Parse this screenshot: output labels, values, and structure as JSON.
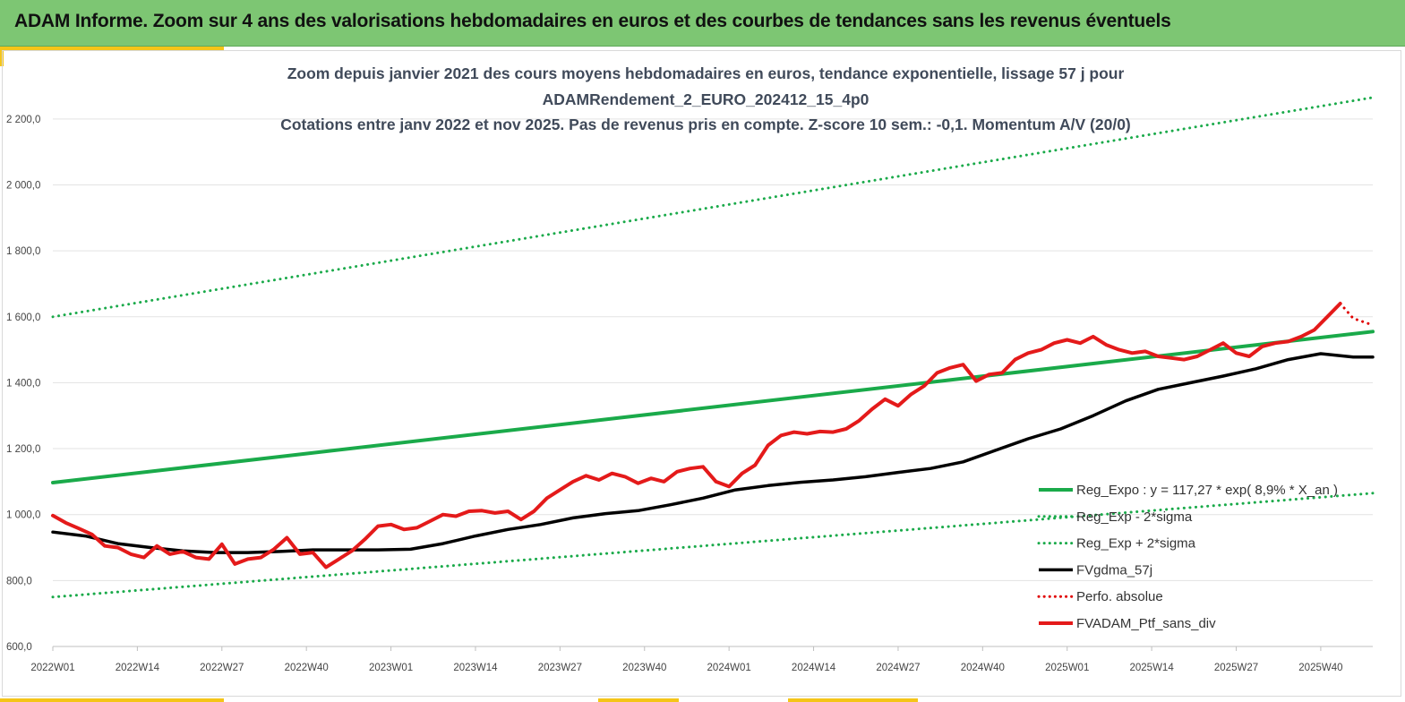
{
  "header": {
    "title": "ADAM Informe. Zoom sur 4 ans des valorisations hebdomadaires en euros et des courbes de tendances sans les revenus éventuels"
  },
  "colors": {
    "header_bg": "#7dc673",
    "accent": "#f5c518",
    "trend": "#1aaa4a",
    "trend_band": "#1aaa4a",
    "smoothed": "#000000",
    "perf_abs": "#e00000",
    "portfolio": "#e41a1a"
  },
  "chart_data": {
    "type": "line",
    "title_lines": [
      "Zoom depuis janvier 2021 des cours moyens hebdomadaires  en euros, tendance exponentielle, lissage 57 j pour",
      "ADAMRendement_2_EURO_202412_15_4p0",
      "Cotations  entre janv 2022 et nov 2025. Pas de revenus pris en compte. Z-score 10 sem.: -0,1. Momentum A/V (20/0)"
    ],
    "x_tick_labels": [
      "2022W01",
      "2022W14",
      "2022W27",
      "2022W40",
      "2023W01",
      "2023W14",
      "2023W27",
      "2023W40",
      "2024W01",
      "2024W14",
      "2024W27",
      "2024W40",
      "2025W01",
      "2025W14",
      "2025W27",
      "2025W40"
    ],
    "x_tick_index": [
      0,
      13,
      26,
      39,
      52,
      65,
      78,
      91,
      104,
      117,
      130,
      143,
      156,
      169,
      182,
      195
    ],
    "x_range": [
      0,
      203
    ],
    "y_ticks": [
      600,
      800,
      1000,
      1200,
      1400,
      1600,
      1800,
      2000,
      2200
    ],
    "y_tick_labels": [
      "600,0",
      "800,0",
      "1 000,0",
      "1 200,0",
      "1 400,0",
      "1 600,0",
      "1 800,0",
      "2 000,0",
      "2 200,0"
    ],
    "ylim": [
      600,
      2300
    ],
    "grid": "horizontal",
    "legend_position": "bottom-right",
    "series": [
      {
        "name": "Reg_Expo : y = 117,27 * exp( 8,9% *  X_an )",
        "style": "solid",
        "color": "#1aaa4a",
        "width": 4,
        "x": [
          0,
          203
        ],
        "y": [
          1097,
          1555
        ]
      },
      {
        "name": "Reg_Exp - 2*sigma",
        "style": "dotted",
        "color": "#1aaa4a",
        "width": 3,
        "x": [
          0,
          203
        ],
        "y": [
          750,
          1065
        ]
      },
      {
        "name": "Reg_Exp + 2*sigma",
        "style": "dotted",
        "color": "#1aaa4a",
        "width": 3,
        "x": [
          0,
          203
        ],
        "y": [
          1600,
          2265
        ]
      },
      {
        "name": "FVgdma_57j",
        "style": "solid",
        "color": "#000000",
        "width": 3.5,
        "x": [
          0,
          5,
          10,
          15,
          20,
          25,
          30,
          35,
          40,
          45,
          50,
          55,
          60,
          65,
          70,
          75,
          80,
          85,
          90,
          95,
          100,
          105,
          110,
          115,
          120,
          125,
          130,
          135,
          140,
          145,
          150,
          155,
          160,
          165,
          170,
          175,
          180,
          185,
          190,
          195,
          200,
          203
        ],
        "y": [
          947,
          935,
          912,
          900,
          890,
          885,
          885,
          888,
          893,
          893,
          893,
          895,
          912,
          935,
          955,
          970,
          990,
          1003,
          1012,
          1030,
          1050,
          1075,
          1088,
          1098,
          1105,
          1115,
          1128,
          1140,
          1160,
          1195,
          1230,
          1260,
          1300,
          1345,
          1380,
          1400,
          1420,
          1442,
          1470,
          1488,
          1478,
          1478
        ]
      },
      {
        "name": "Perfo. absolue",
        "style": "dotted",
        "color": "#e00000",
        "width": 3,
        "x": [
          198,
          200,
          203
        ],
        "y": [
          1640,
          1595,
          1575
        ]
      },
      {
        "name": "FVADAM_Ptf_sans_div",
        "style": "solid",
        "color": "#e41a1a",
        "width": 4,
        "x": [
          0,
          2,
          4,
          6,
          8,
          10,
          12,
          14,
          16,
          18,
          20,
          22,
          24,
          26,
          28,
          30,
          32,
          34,
          36,
          38,
          40,
          42,
          44,
          46,
          48,
          50,
          52,
          54,
          56,
          58,
          60,
          62,
          64,
          66,
          68,
          70,
          72,
          74,
          76,
          78,
          80,
          82,
          84,
          86,
          88,
          90,
          92,
          94,
          96,
          98,
          100,
          102,
          104,
          106,
          108,
          110,
          112,
          114,
          116,
          118,
          120,
          122,
          124,
          126,
          128,
          130,
          132,
          134,
          136,
          138,
          140,
          142,
          144,
          146,
          148,
          150,
          152,
          154,
          156,
          158,
          160,
          162,
          164,
          166,
          168,
          170,
          172,
          174,
          176,
          178,
          180,
          182,
          184,
          186,
          188,
          190,
          192,
          194,
          196,
          198
        ],
        "y": [
          997,
          975,
          958,
          940,
          905,
          900,
          880,
          870,
          905,
          880,
          888,
          870,
          865,
          910,
          850,
          865,
          870,
          895,
          930,
          880,
          885,
          840,
          865,
          890,
          925,
          965,
          970,
          955,
          960,
          980,
          1000,
          995,
          1010,
          1012,
          1005,
          1010,
          985,
          1010,
          1050,
          1075,
          1100,
          1118,
          1105,
          1125,
          1115,
          1095,
          1110,
          1100,
          1130,
          1140,
          1145,
          1100,
          1085,
          1125,
          1150,
          1210,
          1240,
          1250,
          1245,
          1252,
          1250,
          1260,
          1285,
          1320,
          1350,
          1330,
          1365,
          1390,
          1430,
          1445,
          1455,
          1405,
          1425,
          1430,
          1470,
          1490,
          1500,
          1520,
          1530,
          1520,
          1540,
          1515,
          1500,
          1490,
          1495,
          1480,
          1475,
          1470,
          1480,
          1500,
          1520,
          1490,
          1480,
          1510,
          1520,
          1525,
          1540,
          1560,
          1600,
          1640
        ]
      }
    ]
  }
}
